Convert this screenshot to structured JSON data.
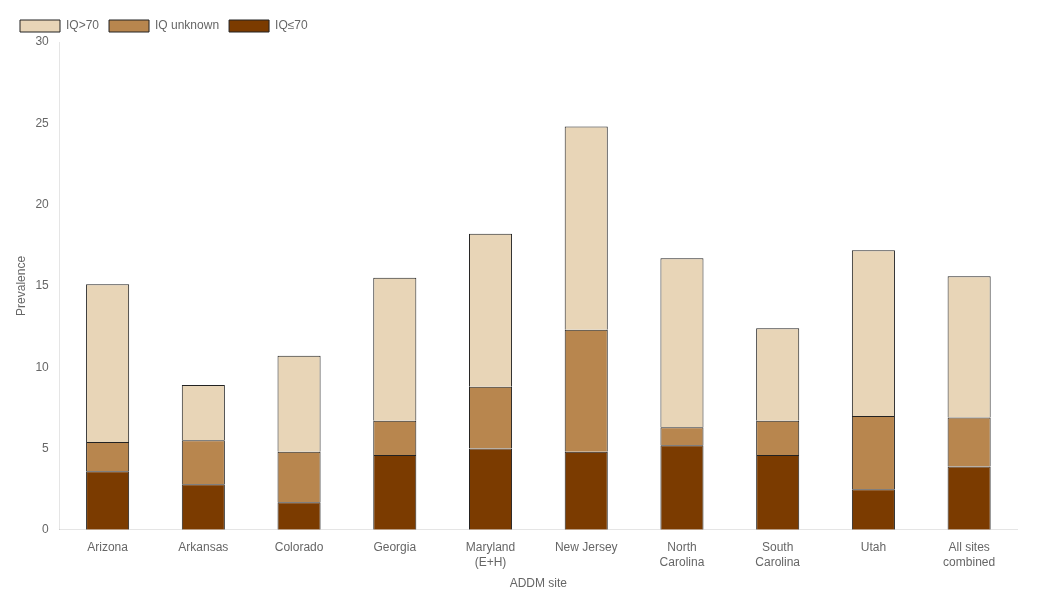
{
  "chart_data": {
    "type": "bar",
    "categories": [
      "Arizona",
      "Arkansas",
      "Colorado",
      "Georgia",
      "Maryland\n(E+H)",
      "New Jersey",
      "North\nCarolina",
      "South\nCarolina",
      "Utah",
      "All sites\ncombined"
    ],
    "series": [
      {
        "name": "IQ≤70",
        "color": "#7B3B00",
        "values": [
          3.6,
          2.8,
          1.7,
          4.6,
          5.0,
          4.8,
          5.2,
          4.6,
          2.5,
          3.9
        ]
      },
      {
        "name": "IQ unknown",
        "color": "#B8864E",
        "values": [
          1.8,
          2.7,
          3.1,
          2.1,
          3.8,
          7.5,
          1.1,
          2.1,
          4.5,
          3.0
        ]
      },
      {
        "name": "IQ>70",
        "color": "#E8D5B7",
        "values": [
          9.7,
          3.4,
          5.9,
          8.8,
          9.4,
          12.5,
          10.4,
          5.7,
          10.2,
          8.7
        ]
      }
    ],
    "stacked": true,
    "xlabel": "ADDM site",
    "ylabel": "Prevalence",
    "ylim": [
      0,
      30
    ],
    "yticks": [
      0,
      5,
      10,
      15,
      20,
      25,
      30
    ],
    "grid": false,
    "legend": "upper left"
  }
}
